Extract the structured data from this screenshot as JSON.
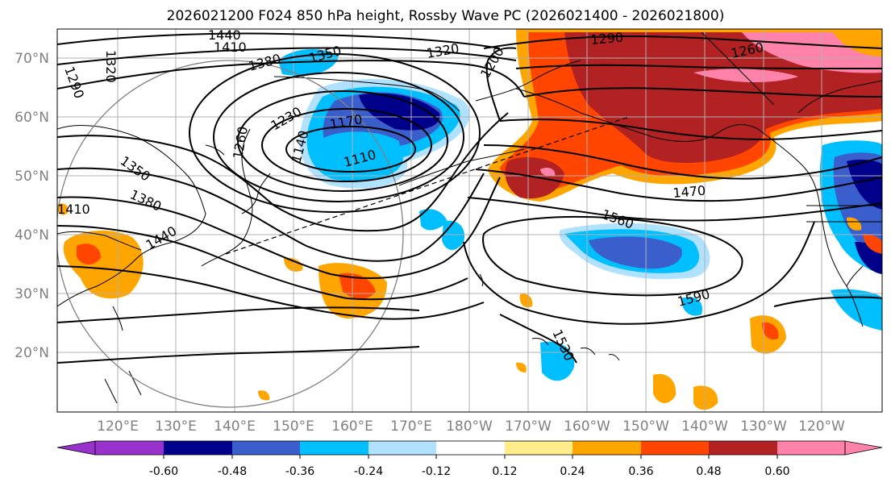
{
  "title": "2026021200 F024 850 hPa height, Rossby Wave PC (2026021400 - 2026021800)",
  "map": {
    "lon_labels": [
      "120°E",
      "130°E",
      "140°E",
      "150°E",
      "160°E",
      "170°E",
      "180°W",
      "170°W",
      "160°W",
      "150°W",
      "140°W",
      "130°W",
      "120°W"
    ],
    "lat_labels": [
      "70°N",
      "60°N",
      "50°N",
      "40°N",
      "30°N",
      "20°N"
    ],
    "contour_labels": [
      "1440",
      "1410",
      "1380",
      "1350",
      "1320",
      "1290",
      "1230",
      "1200",
      "1260",
      "1170",
      "1140",
      "1110",
      "1350",
      "1380",
      "1410",
      "1440",
      "1560",
      "1470",
      "1590",
      "1530",
      "1290",
      "1320",
      "1260"
    ]
  },
  "colorbar": {
    "labels": [
      "-0.60",
      "-0.48",
      "-0.36",
      "-0.24",
      "-0.12",
      "0.12",
      "0.24",
      "0.36",
      "0.48",
      "0.60"
    ],
    "colors": [
      "#9932cc",
      "#00008b",
      "#3a5fcd",
      "#00bfff",
      "#b0e2ff",
      "#ffffff",
      "#ffec8b",
      "#ffa500",
      "#ff4500",
      "#b22222",
      "#ff82ab"
    ]
  }
}
